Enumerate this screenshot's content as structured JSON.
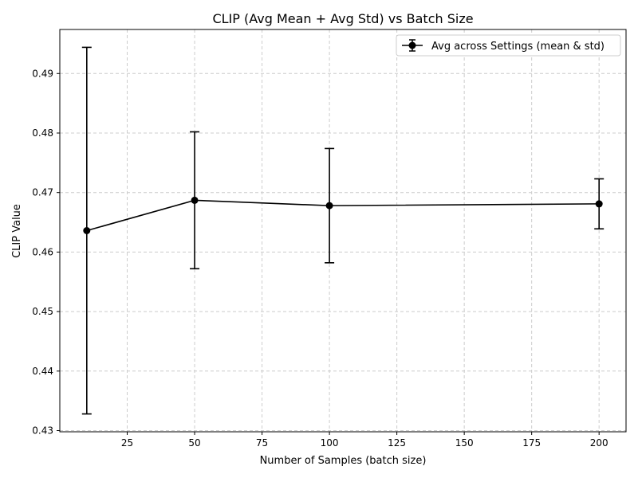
{
  "chart_data": {
    "type": "line",
    "title": "CLIP (Avg Mean + Avg Std) vs Batch Size",
    "xlabel": "Number of Samples (batch size)",
    "ylabel": "CLIP Value",
    "xlim": [
      0,
      210
    ],
    "ylim": [
      0.4298,
      0.4974
    ],
    "xticks": [
      25,
      50,
      75,
      100,
      125,
      150,
      175,
      200
    ],
    "yticks": [
      0.43,
      0.44,
      0.45,
      0.46,
      0.47,
      0.48,
      0.49
    ],
    "grid": true,
    "grid_style": "dashed",
    "legend_position": "top-right",
    "series": [
      {
        "name": "Avg across Settings (mean & std)",
        "color": "#000000",
        "marker": "circle",
        "x": [
          10,
          50,
          100,
          200
        ],
        "y": [
          0.4636,
          0.4687,
          0.4678,
          0.4681
        ],
        "err": [
          0.0308,
          0.0115,
          0.0096,
          0.0042
        ]
      }
    ]
  }
}
